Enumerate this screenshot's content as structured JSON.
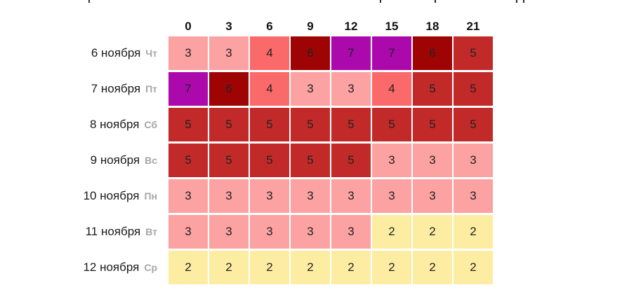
{
  "chart_data": {
    "type": "heatmap",
    "columns": [
      "0",
      "3",
      "6",
      "9",
      "12",
      "15",
      "18",
      "21"
    ],
    "rows": [
      {
        "date": "6 ноября",
        "day": "Чт",
        "values": [
          3,
          3,
          4,
          6,
          7,
          7,
          6,
          5
        ]
      },
      {
        "date": "7 ноября",
        "day": "Пт",
        "values": [
          7,
          6,
          4,
          3,
          3,
          4,
          5,
          5
        ]
      },
      {
        "date": "8 ноября",
        "day": "Сб",
        "values": [
          5,
          5,
          5,
          5,
          5,
          5,
          5,
          5
        ]
      },
      {
        "date": "9 ноября",
        "day": "Вс",
        "values": [
          5,
          5,
          5,
          5,
          5,
          3,
          3,
          3
        ]
      },
      {
        "date": "10 ноября",
        "day": "Пн",
        "values": [
          3,
          3,
          3,
          3,
          3,
          3,
          3,
          3
        ]
      },
      {
        "date": "11 ноября",
        "day": "Вт",
        "values": [
          3,
          3,
          3,
          3,
          3,
          2,
          2,
          2
        ]
      },
      {
        "date": "12 ноября",
        "day": "Ср",
        "values": [
          2,
          2,
          2,
          2,
          2,
          2,
          2,
          2
        ]
      }
    ],
    "value_colors": {
      "2": "#fdeda3",
      "3": "#fca2a2",
      "4": "#fb6a6a",
      "5": "#c22a2a",
      "6": "#9e0404",
      "7": "#ab09ab"
    },
    "layout": {
      "legend": "none",
      "grid_gap_color": "#ffffff",
      "cell_text_color": "#222222"
    }
  }
}
